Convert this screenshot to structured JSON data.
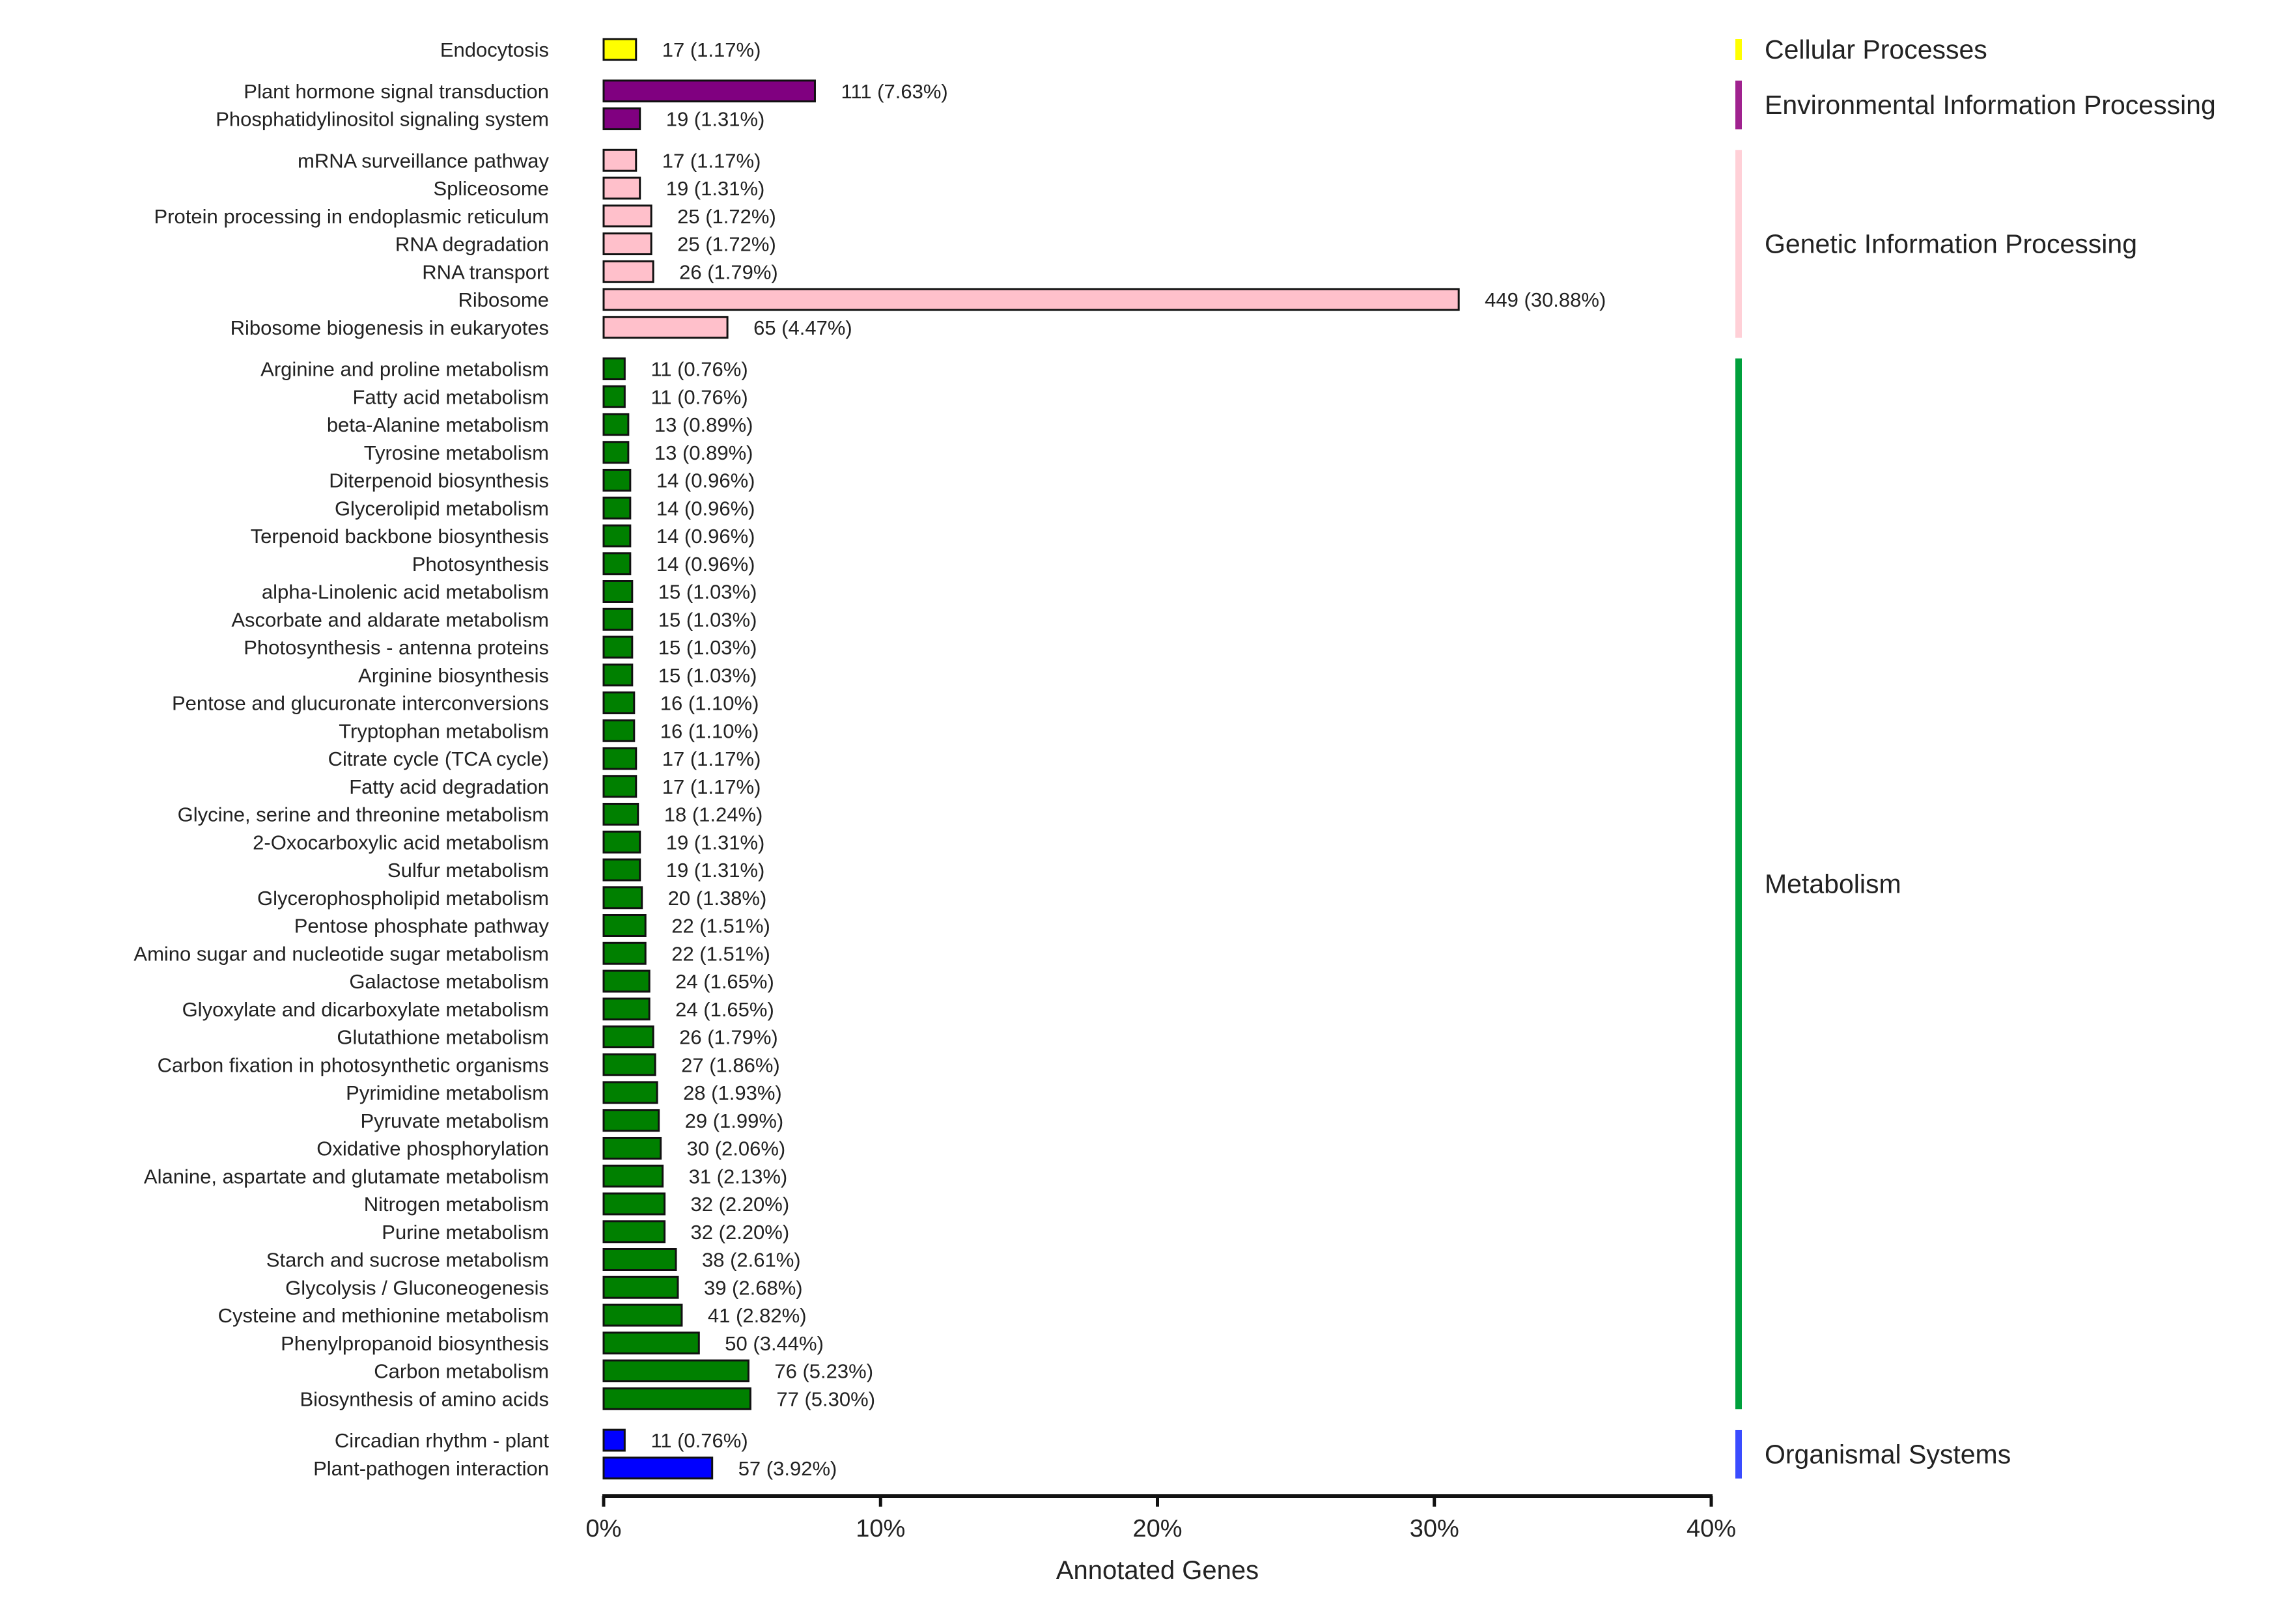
{
  "chart_data": {
    "type": "bar",
    "orientation": "horizontal",
    "xlabel": "Annotated Genes",
    "ylabel": "",
    "xlim": [
      0,
      40
    ],
    "x_ticks": [
      "0%",
      "10%",
      "20%",
      "30%",
      "40%"
    ],
    "groups": [
      {
        "name": "Cellular Processes",
        "color": "#ffff00",
        "bar_color": "#ffff00",
        "items": [
          {
            "label": "Endocytosis",
            "count": 17,
            "percent": 1.17,
            "text": "17 (1.17%)"
          }
        ]
      },
      {
        "name": "Environmental Information Processing",
        "color": "#a0228f",
        "bar_color": "#800080",
        "items": [
          {
            "label": "Plant hormone signal transduction",
            "count": 111,
            "percent": 7.63,
            "text": "111 (7.63%)"
          },
          {
            "label": "Phosphatidylinositol signaling system",
            "count": 19,
            "percent": 1.31,
            "text": "19 (1.31%)"
          }
        ]
      },
      {
        "name": "Genetic Information Processing",
        "color": "#ffd0d7",
        "bar_color": "#ffc0cb",
        "items": [
          {
            "label": "mRNA surveillance pathway",
            "count": 17,
            "percent": 1.17,
            "text": "17 (1.17%)"
          },
          {
            "label": "Spliceosome",
            "count": 19,
            "percent": 1.31,
            "text": "19 (1.31%)"
          },
          {
            "label": "Protein processing in endoplasmic reticulum",
            "count": 25,
            "percent": 1.72,
            "text": "25 (1.72%)"
          },
          {
            "label": "RNA degradation",
            "count": 25,
            "percent": 1.72,
            "text": "25 (1.72%)"
          },
          {
            "label": "RNA transport",
            "count": 26,
            "percent": 1.79,
            "text": "26 (1.79%)"
          },
          {
            "label": "Ribosome",
            "count": 449,
            "percent": 30.88,
            "text": "449 (30.88%)"
          },
          {
            "label": "Ribosome biogenesis in eukaryotes",
            "count": 65,
            "percent": 4.47,
            "text": "65 (4.47%)"
          }
        ]
      },
      {
        "name": "Metabolism",
        "color": "#00a03c",
        "bar_color": "#008000",
        "items": [
          {
            "label": "Arginine and proline metabolism",
            "count": 11,
            "percent": 0.76,
            "text": "11 (0.76%)"
          },
          {
            "label": "Fatty acid metabolism",
            "count": 11,
            "percent": 0.76,
            "text": "11 (0.76%)"
          },
          {
            "label": "beta-Alanine metabolism",
            "count": 13,
            "percent": 0.89,
            "text": "13 (0.89%)"
          },
          {
            "label": "Tyrosine metabolism",
            "count": 13,
            "percent": 0.89,
            "text": "13 (0.89%)"
          },
          {
            "label": "Diterpenoid biosynthesis",
            "count": 14,
            "percent": 0.96,
            "text": "14 (0.96%)"
          },
          {
            "label": "Glycerolipid metabolism",
            "count": 14,
            "percent": 0.96,
            "text": "14 (0.96%)"
          },
          {
            "label": "Terpenoid backbone biosynthesis",
            "count": 14,
            "percent": 0.96,
            "text": "14 (0.96%)"
          },
          {
            "label": "Photosynthesis",
            "count": 14,
            "percent": 0.96,
            "text": "14 (0.96%)"
          },
          {
            "label": "alpha-Linolenic acid metabolism",
            "count": 15,
            "percent": 1.03,
            "text": "15 (1.03%)"
          },
          {
            "label": "Ascorbate and aldarate metabolism",
            "count": 15,
            "percent": 1.03,
            "text": "15 (1.03%)"
          },
          {
            "label": "Photosynthesis - antenna proteins",
            "count": 15,
            "percent": 1.03,
            "text": "15 (1.03%)"
          },
          {
            "label": "Arginine biosynthesis",
            "count": 15,
            "percent": 1.03,
            "text": "15 (1.03%)"
          },
          {
            "label": "Pentose and glucuronate interconversions",
            "count": 16,
            "percent": 1.1,
            "text": "16 (1.10%)"
          },
          {
            "label": "Tryptophan metabolism",
            "count": 16,
            "percent": 1.1,
            "text": "16 (1.10%)"
          },
          {
            "label": "Citrate cycle (TCA cycle)",
            "count": 17,
            "percent": 1.17,
            "text": "17 (1.17%)"
          },
          {
            "label": "Fatty acid degradation",
            "count": 17,
            "percent": 1.17,
            "text": "17 (1.17%)"
          },
          {
            "label": "Glycine, serine and threonine metabolism",
            "count": 18,
            "percent": 1.24,
            "text": "18 (1.24%)"
          },
          {
            "label": "2-Oxocarboxylic acid metabolism",
            "count": 19,
            "percent": 1.31,
            "text": "19 (1.31%)"
          },
          {
            "label": "Sulfur metabolism",
            "count": 19,
            "percent": 1.31,
            "text": "19 (1.31%)"
          },
          {
            "label": "Glycerophospholipid metabolism",
            "count": 20,
            "percent": 1.38,
            "text": "20 (1.38%)"
          },
          {
            "label": "Pentose phosphate pathway",
            "count": 22,
            "percent": 1.51,
            "text": "22 (1.51%)"
          },
          {
            "label": "Amino sugar and nucleotide sugar metabolism",
            "count": 22,
            "percent": 1.51,
            "text": "22 (1.51%)"
          },
          {
            "label": "Galactose metabolism",
            "count": 24,
            "percent": 1.65,
            "text": "24 (1.65%)"
          },
          {
            "label": "Glyoxylate and dicarboxylate metabolism",
            "count": 24,
            "percent": 1.65,
            "text": "24 (1.65%)"
          },
          {
            "label": "Glutathione metabolism",
            "count": 26,
            "percent": 1.79,
            "text": "26 (1.79%)"
          },
          {
            "label": "Carbon fixation in photosynthetic organisms",
            "count": 27,
            "percent": 1.86,
            "text": "27 (1.86%)"
          },
          {
            "label": "Pyrimidine metabolism",
            "count": 28,
            "percent": 1.93,
            "text": "28 (1.93%)"
          },
          {
            "label": "Pyruvate metabolism",
            "count": 29,
            "percent": 1.99,
            "text": "29 (1.99%)"
          },
          {
            "label": "Oxidative phosphorylation",
            "count": 30,
            "percent": 2.06,
            "text": "30 (2.06%)"
          },
          {
            "label": "Alanine, aspartate and glutamate metabolism",
            "count": 31,
            "percent": 2.13,
            "text": "31 (2.13%)"
          },
          {
            "label": "Nitrogen metabolism",
            "count": 32,
            "percent": 2.2,
            "text": "32 (2.20%)"
          },
          {
            "label": "Purine metabolism",
            "count": 32,
            "percent": 2.2,
            "text": "32 (2.20%)"
          },
          {
            "label": "Starch and sucrose metabolism",
            "count": 38,
            "percent": 2.61,
            "text": "38 (2.61%)"
          },
          {
            "label": "Glycolysis / Gluconeogenesis",
            "count": 39,
            "percent": 2.68,
            "text": "39 (2.68%)"
          },
          {
            "label": "Cysteine and methionine metabolism",
            "count": 41,
            "percent": 2.82,
            "text": "41 (2.82%)"
          },
          {
            "label": "Phenylpropanoid biosynthesis",
            "count": 50,
            "percent": 3.44,
            "text": "50 (3.44%)"
          },
          {
            "label": "Carbon metabolism",
            "count": 76,
            "percent": 5.23,
            "text": "76 (5.23%)"
          },
          {
            "label": "Biosynthesis of amino acids",
            "count": 77,
            "percent": 5.3,
            "text": "77 (5.30%)"
          }
        ]
      },
      {
        "name": "Organismal Systems",
        "color": "#3a4cff",
        "bar_color": "#0000ff",
        "items": [
          {
            "label": "Circadian rhythm - plant",
            "count": 11,
            "percent": 0.76,
            "text": "11 (0.76%)"
          },
          {
            "label": "Plant-pathogen interaction",
            "count": 57,
            "percent": 3.92,
            "text": "57 (3.92%)"
          }
        ]
      }
    ]
  }
}
